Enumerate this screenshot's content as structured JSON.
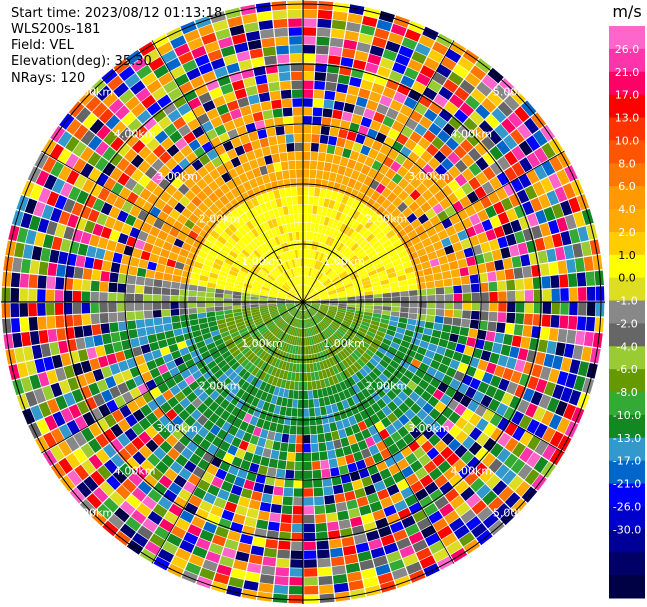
{
  "header": {
    "start_time": "Start time: 2023/08/12 01:13:18",
    "station": "WLS200s-181",
    "field": "Field: VEL",
    "elevation": "Elevation(deg): 35.30",
    "nrays": "NRays: 120"
  },
  "range_labels": [
    "1.00km",
    "2.00km",
    "3.00km",
    "4.00km",
    "5.00km"
  ],
  "colorbar": {
    "unit": "m/s",
    "ticks": [
      "26.0",
      "21.0",
      "17.0",
      "13.0",
      "10.0",
      "8.0",
      "6.0",
      "4.0",
      "2.0",
      "1.0",
      "0.0",
      "-1.0",
      "-2.0",
      "-4.0",
      "-6.0",
      "-8.0",
      "-10.0",
      "-13.0",
      "-17.0",
      "-21.0",
      "-26.0",
      "-30.0"
    ],
    "colors": [
      "#ff66cc",
      "#ff33aa",
      "#ff0066",
      "#ff0000",
      "#ff3300",
      "#ff5500",
      "#ff7700",
      "#ff9900",
      "#ffaa00",
      "#ffcc00",
      "#ffff00",
      "#dddd22",
      "#888888",
      "#666666",
      "#99cc33",
      "#669900",
      "#33aa33",
      "#118822",
      "#3399cc",
      "#0066cc",
      "#0000ff",
      "#0000cc",
      "#000099",
      "#000066",
      "#000044"
    ]
  }
}
